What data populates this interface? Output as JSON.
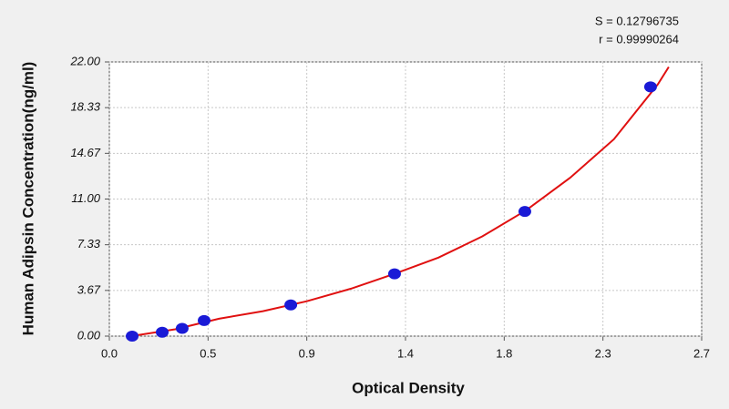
{
  "chart_data": {
    "type": "scatter",
    "x_label": "Optical Density",
    "y_label": "Human Adipsin Concentration(ng/ml)",
    "annotations": [
      "S = 0.12796735",
      "r = 0.99990264"
    ],
    "xlim": [
      0,
      2.7
    ],
    "ylim": [
      0,
      22
    ],
    "xticks": [
      {
        "value": 0,
        "label": "0.0"
      },
      {
        "value": 0.45,
        "label": "0.5"
      },
      0.9,
      {
        "value": 1.35,
        "label": "1.4"
      },
      1.8,
      {
        "value": 2.25,
        "label": "2.3"
      },
      2.7
    ],
    "yticks": [
      {
        "value": 0,
        "label": "0.00"
      },
      {
        "value": 3.667,
        "label": "3.67"
      },
      {
        "value": 7.333,
        "label": "7.33"
      },
      {
        "value": 11,
        "label": "11.00"
      },
      {
        "value": 14.667,
        "label": "14.67"
      },
      {
        "value": 18.333,
        "label": "18.33"
      },
      {
        "value": 22,
        "label": "22.00"
      }
    ],
    "grid": true,
    "series": [
      {
        "color": "#1a1ad6",
        "x": [
          0.104,
          0.241,
          0.332,
          0.432,
          0.827,
          1.3,
          1.894,
          2.467
        ],
        "values": [
          0,
          0.3125,
          0.625,
          1.25,
          2.5,
          5,
          10,
          20
        ]
      },
      {
        "color": "#e01010",
        "x": [
          0.1,
          0.3,
          0.5,
          0.7,
          0.9,
          1.1,
          1.3,
          1.5,
          1.7,
          1.9,
          2.1,
          2.3,
          2.5,
          2.55
        ],
        "values": [
          0,
          0.55,
          1.4,
          2.0,
          2.8,
          3.8,
          5.0,
          6.3,
          8.0,
          10.1,
          12.7,
          15.8,
          20.2,
          21.6
        ]
      }
    ]
  }
}
